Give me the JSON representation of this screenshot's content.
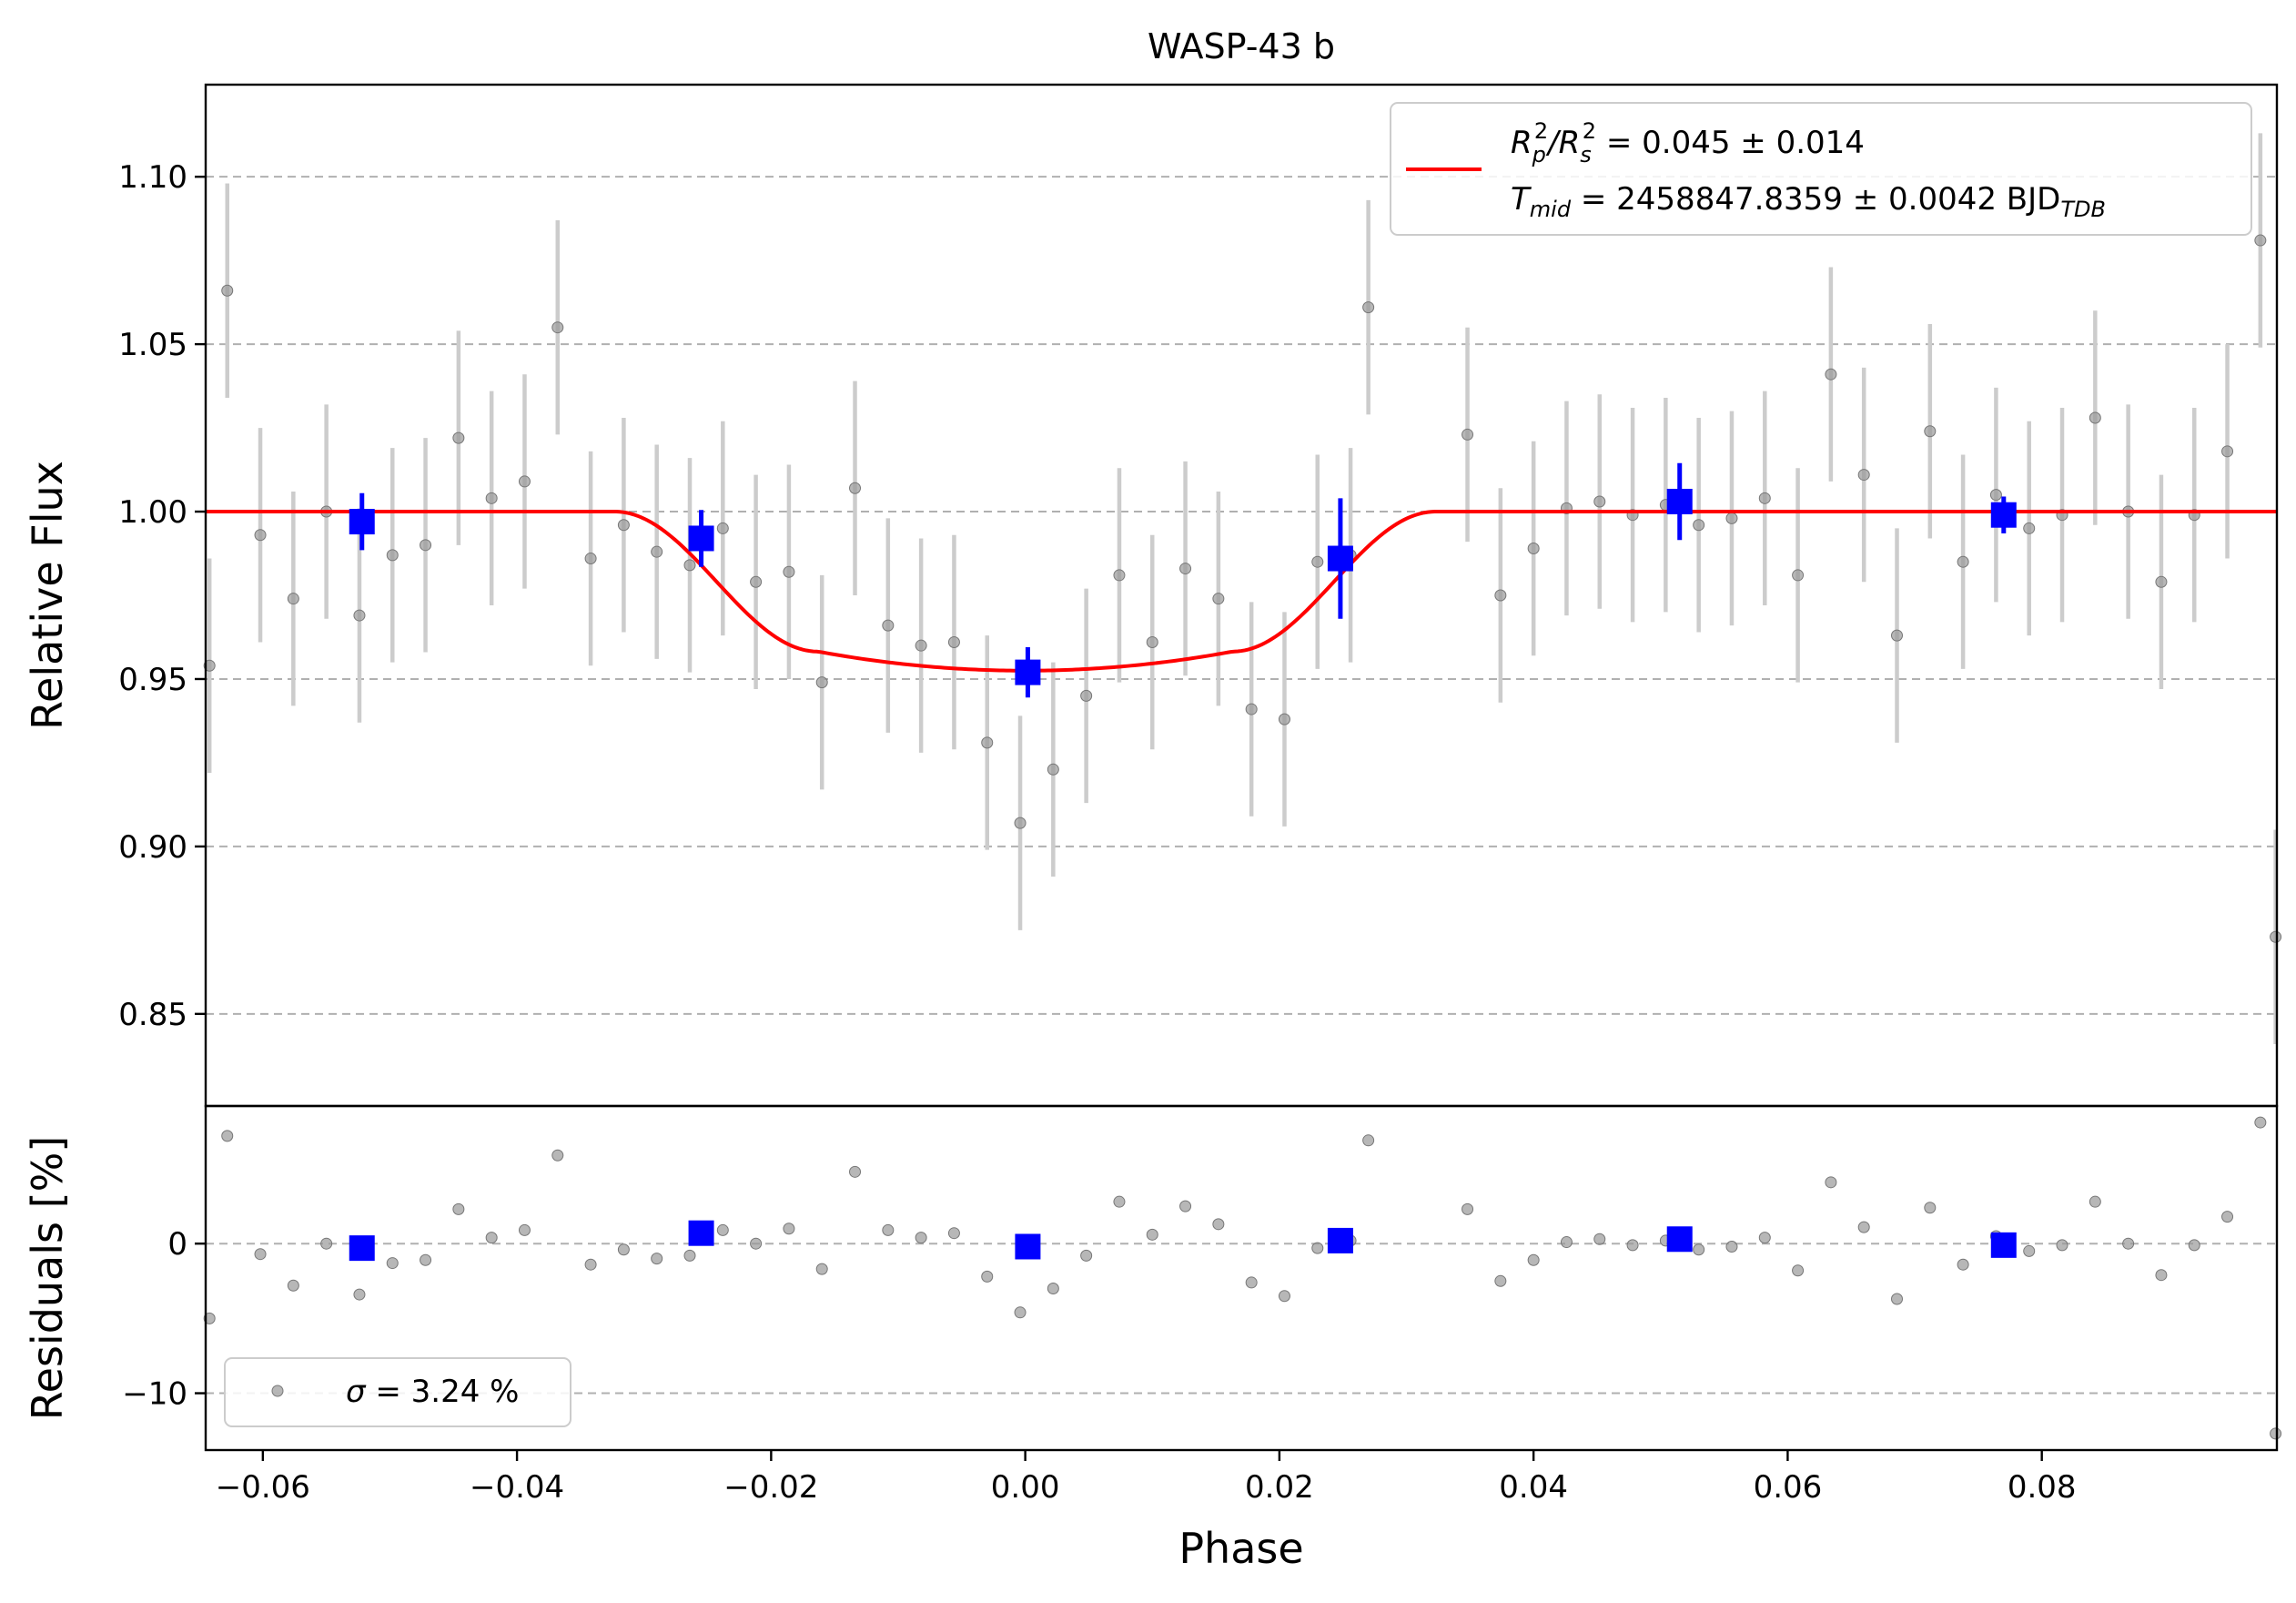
{
  "chart_data": {
    "title": "WASP-43 b",
    "xlabel": "Phase",
    "xlim": [
      -0.0645,
      0.0985
    ],
    "grid": "horizontal dashed",
    "colors": {
      "model": "#ff0000",
      "binned": "#0000ff",
      "raw": "#999999",
      "raw_error": "#cccccc",
      "grid": "#b0b0b0"
    },
    "xticks": [
      -0.06,
      -0.04,
      -0.02,
      0.0,
      0.02,
      0.04,
      0.06,
      0.08
    ],
    "xtick_labels": [
      "−0.06",
      "−0.04",
      "−0.02",
      "0.00",
      "0.02",
      "0.04",
      "0.06",
      "0.08"
    ],
    "panels": [
      {
        "name": "flux",
        "type": "scatter",
        "ylabel": "Relative Flux",
        "ylim": [
          0.8225,
          1.1275
        ],
        "yticks": [
          0.85,
          0.9,
          0.95,
          1.0,
          1.05,
          1.1
        ],
        "ytick_labels": [
          "0.85",
          "0.90",
          "0.95",
          "1.00",
          "1.05",
          "1.10"
        ],
        "legend": {
          "placement": "top-right",
          "line1_pre": "R",
          "line1_sub1": "p",
          "line1_sup1": "2",
          "line1_mid": "/R",
          "line1_sub2": "s",
          "line1_sup2": "2",
          "line1_post": " = 0.045 ± 0.014",
          "line2_pre": "T",
          "line2_sub": "mid",
          "line2_post": " = 2458847.8359 ± 0.0042 BJD",
          "line2_sub2": "TDB"
        },
        "model": {
          "name": "transit model",
          "depth": 0.0475,
          "t1": -0.0323,
          "t2": -0.0163,
          "t3": 0.0163,
          "t4": 0.0323,
          "floor_curvature": 0.12
        },
        "raw_points": [
          [
            -0.0642,
            0.954,
            0.032
          ],
          [
            -0.0628,
            1.066,
            0.032
          ],
          [
            -0.0602,
            0.993,
            0.032
          ],
          [
            -0.0576,
            0.974,
            0.032
          ],
          [
            -0.055,
            1.0,
            0.032
          ],
          [
            -0.0524,
            0.969,
            0.032
          ],
          [
            -0.0498,
            0.987,
            0.032
          ],
          [
            -0.0472,
            0.99,
            0.032
          ],
          [
            -0.0446,
            1.022,
            0.032
          ],
          [
            -0.042,
            1.004,
            0.032
          ],
          [
            -0.0394,
            1.009,
            0.032
          ],
          [
            -0.0368,
            1.055,
            0.032
          ],
          [
            -0.0342,
            0.986,
            0.032
          ],
          [
            -0.0316,
            0.996,
            0.032
          ],
          [
            -0.029,
            0.988,
            0.032
          ],
          [
            -0.0264,
            0.984,
            0.032
          ],
          [
            -0.0238,
            0.995,
            0.032
          ],
          [
            -0.0212,
            0.979,
            0.032
          ],
          [
            -0.0186,
            0.982,
            0.032
          ],
          [
            -0.016,
            0.949,
            0.032
          ],
          [
            -0.0134,
            1.007,
            0.032
          ],
          [
            -0.0108,
            0.966,
            0.032
          ],
          [
            -0.0082,
            0.96,
            0.032
          ],
          [
            -0.0056,
            0.961,
            0.032
          ],
          [
            -0.003,
            0.931,
            0.032
          ],
          [
            -0.0004,
            0.907,
            0.032
          ],
          [
            0.0022,
            0.923,
            0.032
          ],
          [
            0.0048,
            0.945,
            0.032
          ],
          [
            0.0074,
            0.981,
            0.032
          ],
          [
            0.01,
            0.961,
            0.032
          ],
          [
            0.0126,
            0.983,
            0.032
          ],
          [
            0.0152,
            0.974,
            0.032
          ],
          [
            0.0178,
            0.941,
            0.032
          ],
          [
            0.0204,
            0.938,
            0.032
          ],
          [
            0.023,
            0.985,
            0.032
          ],
          [
            0.0256,
            0.987,
            0.032
          ],
          [
            0.027,
            1.061,
            0.032
          ],
          [
            0.0348,
            1.023,
            0.032
          ],
          [
            0.0374,
            0.975,
            0.032
          ],
          [
            0.04,
            0.989,
            0.032
          ],
          [
            0.0426,
            1.001,
            0.032
          ],
          [
            0.0452,
            1.003,
            0.032
          ],
          [
            0.0478,
            0.999,
            0.032
          ],
          [
            0.0504,
            1.002,
            0.032
          ],
          [
            0.053,
            0.996,
            0.032
          ],
          [
            0.0556,
            0.998,
            0.032
          ],
          [
            0.0582,
            1.004,
            0.032
          ],
          [
            0.0608,
            0.981,
            0.032
          ],
          [
            0.0634,
            1.041,
            0.032
          ],
          [
            0.066,
            1.011,
            0.032
          ],
          [
            0.0686,
            0.963,
            0.032
          ],
          [
            0.0712,
            1.024,
            0.032
          ],
          [
            0.0738,
            0.985,
            0.032
          ],
          [
            0.0764,
            1.005,
            0.032
          ],
          [
            0.079,
            0.995,
            0.032
          ],
          [
            0.0816,
            0.999,
            0.032
          ],
          [
            0.0842,
            1.028,
            0.032
          ],
          [
            0.0868,
            1.0,
            0.032
          ],
          [
            0.0894,
            0.979,
            0.032
          ],
          [
            0.092,
            0.999,
            0.032
          ],
          [
            0.0946,
            1.018,
            0.032
          ],
          [
            0.0972,
            1.081,
            0.032
          ],
          [
            0.0984,
            0.873,
            0.032
          ]
        ],
        "binned_points": [
          [
            -0.0522,
            0.997,
            0.0085
          ],
          [
            -0.0255,
            0.992,
            0.0085
          ],
          [
            0.0002,
            0.952,
            0.0075
          ],
          [
            0.0248,
            0.986,
            0.018
          ],
          [
            0.0515,
            1.003,
            0.0115
          ],
          [
            0.077,
            0.999,
            0.0055
          ]
        ]
      },
      {
        "name": "residuals",
        "type": "scatter",
        "ylabel": "Residuals [%]",
        "ylim": [
          -13.8,
          9.2
        ],
        "yticks": [
          -10,
          0
        ],
        "ytick_labels": [
          "−10",
          "0"
        ],
        "legend": {
          "placement": "lower-left",
          "label_pre": "σ",
          "label_post": " = 3.24 %"
        },
        "raw_points": [
          [
            -0.0642,
            -5.0
          ],
          [
            -0.0628,
            7.2
          ],
          [
            -0.0602,
            -0.7
          ],
          [
            -0.0576,
            -2.8
          ],
          [
            -0.055,
            0.0
          ],
          [
            -0.0524,
            -3.4
          ],
          [
            -0.0498,
            -1.3
          ],
          [
            -0.0472,
            -1.1
          ],
          [
            -0.0446,
            2.3
          ],
          [
            -0.042,
            0.4
          ],
          [
            -0.0394,
            0.9
          ],
          [
            -0.0368,
            5.9
          ],
          [
            -0.0342,
            -1.4
          ],
          [
            -0.0316,
            -0.4
          ],
          [
            -0.029,
            -1.0
          ],
          [
            -0.0264,
            -0.8
          ],
          [
            -0.0238,
            0.9
          ],
          [
            -0.0212,
            0.0
          ],
          [
            -0.0186,
            1.0
          ],
          [
            -0.016,
            -1.7
          ],
          [
            -0.0134,
            4.8
          ],
          [
            -0.0108,
            0.9
          ],
          [
            -0.0082,
            0.4
          ],
          [
            -0.0056,
            0.7
          ],
          [
            -0.003,
            -2.2
          ],
          [
            -0.0004,
            -4.6
          ],
          [
            0.0022,
            -3.0
          ],
          [
            0.0048,
            -0.8
          ],
          [
            0.0074,
            2.8
          ],
          [
            0.01,
            0.6
          ],
          [
            0.0126,
            2.5
          ],
          [
            0.0152,
            1.3
          ],
          [
            0.0178,
            -2.6
          ],
          [
            0.0204,
            -3.5
          ],
          [
            0.023,
            -0.3
          ],
          [
            0.0256,
            0.2
          ],
          [
            0.027,
            6.9
          ],
          [
            0.0348,
            2.3
          ],
          [
            0.0374,
            -2.5
          ],
          [
            0.04,
            -1.1
          ],
          [
            0.0426,
            0.1
          ],
          [
            0.0452,
            0.3
          ],
          [
            0.0478,
            -0.1
          ],
          [
            0.0504,
            0.2
          ],
          [
            0.053,
            -0.4
          ],
          [
            0.0556,
            -0.2
          ],
          [
            0.0582,
            0.4
          ],
          [
            0.0608,
            -1.8
          ],
          [
            0.0634,
            4.1
          ],
          [
            0.066,
            1.1
          ],
          [
            0.0686,
            -3.7
          ],
          [
            0.0712,
            2.4
          ],
          [
            0.0738,
            -1.4
          ],
          [
            0.0764,
            0.5
          ],
          [
            0.079,
            -0.5
          ],
          [
            0.0816,
            -0.1
          ],
          [
            0.0842,
            2.8
          ],
          [
            0.0868,
            0.0
          ],
          [
            0.0894,
            -2.1
          ],
          [
            0.092,
            -0.1
          ],
          [
            0.0946,
            1.8
          ],
          [
            0.0972,
            8.1
          ],
          [
            0.0984,
            -12.7
          ]
        ],
        "binned_points": [
          [
            -0.0522,
            -0.3
          ],
          [
            -0.0255,
            0.7
          ],
          [
            0.0002,
            -0.2
          ],
          [
            0.0248,
            0.2
          ],
          [
            0.0515,
            0.3
          ],
          [
            0.077,
            -0.1
          ]
        ]
      }
    ]
  }
}
